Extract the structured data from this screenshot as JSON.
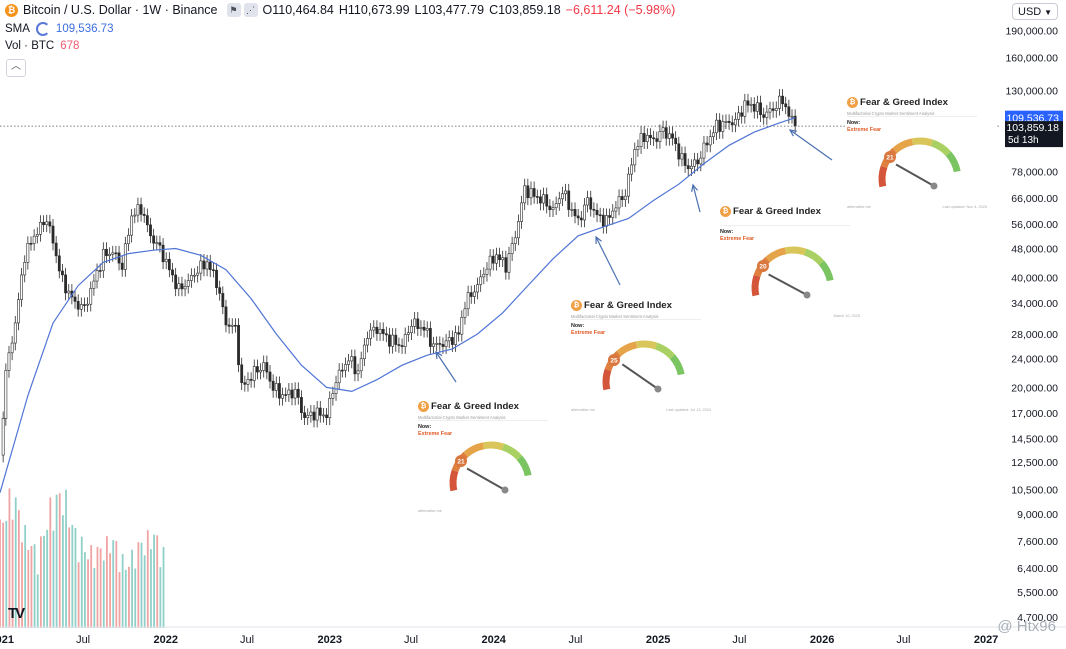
{
  "header": {
    "symbol": "Bitcoin / U.S. Dollar · 1W · Binance",
    "coin_glyph": "₿",
    "open": "O110,464.84",
    "high": "H110,673.99",
    "low": "L103,477.79",
    "close": "C103,859.18",
    "change": "−6,611.24 (−5.98%)",
    "icons": [
      "flag-icon",
      "share-icon"
    ]
  },
  "indicators": {
    "sma_label": "SMA",
    "sma_value": "109,536.73",
    "vol_label": "Vol · BTC",
    "vol_value": "678"
  },
  "currency": "USD",
  "price_scale": {
    "ticks": [
      "190,000.00",
      "160,000.00",
      "130,000.00",
      "78,000.00",
      "66,000.00",
      "56,000.00",
      "48,000.00",
      "40,000.00",
      "34,000.00",
      "28,000.00",
      "24,000.00",
      "20,000.00",
      "17,000.00",
      "14,500.00",
      "12,500.00",
      "10,500.00",
      "9,000.00",
      "7,600.00",
      "6,400.00",
      "5,500.00",
      "4,700.00"
    ],
    "sma_tag": "109,536.73",
    "price_tag": "103,859.18",
    "countdown": "5d 13h"
  },
  "time_axis": [
    "2021",
    "Jul",
    "2022",
    "Jul",
    "2023",
    "Jul",
    "2024",
    "Jul",
    "2025",
    "Jul",
    "2026",
    "Jul",
    "2027"
  ],
  "cards": [
    {
      "title": "Fear & Greed Index",
      "subtitle": "Multifactorial Crypto Market Sentiment Analysis",
      "now": "Now:",
      "status": "Extreme Fear",
      "value": "21",
      "foot": "alternative.me",
      "foot2": ""
    },
    {
      "title": "Fear & Greed Index",
      "subtitle": "Multifactorial Crypto Market Sentiment Analysis",
      "now": "Now:",
      "status": "Extreme Fear",
      "value": "25",
      "foot": "alternative.me",
      "foot2": "Last updated: Jul 13, 2024"
    },
    {
      "title": "Fear & Greed Index",
      "subtitle": "",
      "now": "Now:",
      "status": "Extreme Fear",
      "value": "20",
      "foot": "",
      "foot2": "March 10, 2025"
    },
    {
      "title": "Fear & Greed Index",
      "subtitle": "Multifactorial Crypto Market Sentiment Analysis",
      "now": "Now:",
      "status": "Extreme Fear",
      "value": "21",
      "foot": "alternative.me",
      "foot2": "Last updated: Nov 4, 2025"
    }
  ],
  "watermark": "@ Htx96",
  "tv_logo": "TV",
  "colors": {
    "sma": "#4f74d6",
    "candle": "#2b2b2b",
    "vol_up": "#8fd0c8",
    "vol_down": "#f0a3a3",
    "arrow": "#4a6fb0",
    "tag_blue": "#2962ff"
  },
  "chart_data": {
    "type": "candlestick",
    "title": "Bitcoin / U.S. Dollar",
    "interval": "1W",
    "exchange": "Binance",
    "y_scale": "log",
    "ylim": [
      4500,
      230000
    ],
    "x_range": [
      "2020-12-28",
      "2027-02-01"
    ],
    "close_series": [
      [
        "2020-12-28",
        13000
      ],
      [
        "2021-01-10",
        22000
      ],
      [
        "2021-01-31",
        30000
      ],
      [
        "2021-02-21",
        46000
      ],
      [
        "2021-03-14",
        52000
      ],
      [
        "2021-04-11",
        58000
      ],
      [
        "2021-04-25",
        50000
      ],
      [
        "2021-05-16",
        39000
      ],
      [
        "2021-06-13",
        34000
      ],
      [
        "2021-07-04",
        33000
      ],
      [
        "2021-07-25",
        39000
      ],
      [
        "2021-08-15",
        46000
      ],
      [
        "2021-09-05",
        47000
      ],
      [
        "2021-09-26",
        43000
      ],
      [
        "2021-10-17",
        59000
      ],
      [
        "2021-11-07",
        62000
      ],
      [
        "2021-11-28",
        52000
      ],
      [
        "2021-12-19",
        48000
      ],
      [
        "2022-01-09",
        42000
      ],
      [
        "2022-01-30",
        37000
      ],
      [
        "2022-02-20",
        39000
      ],
      [
        "2022-03-13",
        42000
      ],
      [
        "2022-04-03",
        44000
      ],
      [
        "2022-04-24",
        39000
      ],
      [
        "2022-05-15",
        30000
      ],
      [
        "2022-06-05",
        29000
      ],
      [
        "2022-06-19",
        20000
      ],
      [
        "2022-07-17",
        22000
      ],
      [
        "2022-08-07",
        23000
      ],
      [
        "2022-08-28",
        20000
      ],
      [
        "2022-09-18",
        19000
      ],
      [
        "2022-10-16",
        19500
      ],
      [
        "2022-11-06",
        16500
      ],
      [
        "2022-11-27",
        17000
      ],
      [
        "2022-12-25",
        16800
      ],
      [
        "2023-01-15",
        21000
      ],
      [
        "2023-02-12",
        24000
      ],
      [
        "2023-03-05",
        22000
      ],
      [
        "2023-03-26",
        28000
      ],
      [
        "2023-04-16",
        29000
      ],
      [
        "2023-05-14",
        27000
      ],
      [
        "2023-06-11",
        26000
      ],
      [
        "2023-07-02",
        30000
      ],
      [
        "2023-07-30",
        29000
      ],
      [
        "2023-08-20",
        26000
      ],
      [
        "2023-09-17",
        26500
      ],
      [
        "2023-10-15",
        28000
      ],
      [
        "2023-10-29",
        34000
      ],
      [
        "2023-11-26",
        38000
      ],
      [
        "2023-12-17",
        43000
      ],
      [
        "2024-01-07",
        46000
      ],
      [
        "2024-01-28",
        43000
      ],
      [
        "2024-02-18",
        52000
      ],
      [
        "2024-03-10",
        70000
      ],
      [
        "2024-03-31",
        67000
      ],
      [
        "2024-04-21",
        65000
      ],
      [
        "2024-05-12",
        61000
      ],
      [
        "2024-06-02",
        69000
      ],
      [
        "2024-06-23",
        61000
      ],
      [
        "2024-07-07",
        57000
      ],
      [
        "2024-07-28",
        65000
      ],
      [
        "2024-08-18",
        59000
      ],
      [
        "2024-09-08",
        57000
      ],
      [
        "2024-09-29",
        63000
      ],
      [
        "2024-10-20",
        68000
      ],
      [
        "2024-11-10",
        90000
      ],
      [
        "2024-12-01",
        98000
      ],
      [
        "2024-12-22",
        95000
      ],
      [
        "2025-01-12",
        101000
      ],
      [
        "2025-02-02",
        96000
      ],
      [
        "2025-02-23",
        84000
      ],
      [
        "2025-03-09",
        80000
      ],
      [
        "2025-03-30",
        83000
      ],
      [
        "2025-04-20",
        94000
      ],
      [
        "2025-05-11",
        104000
      ],
      [
        "2025-06-01",
        106000
      ],
      [
        "2025-06-22",
        107000
      ],
      [
        "2025-07-13",
        119000
      ],
      [
        "2025-08-03",
        118000
      ],
      [
        "2025-08-24",
        111000
      ],
      [
        "2025-09-14",
        116000
      ],
      [
        "2025-10-05",
        123000
      ],
      [
        "2025-10-19",
        111000
      ],
      [
        "2025-11-02",
        103859
      ]
    ],
    "sma_series": [
      [
        "2020-12-28",
        10300
      ],
      [
        "2021-02-28",
        19000
      ],
      [
        "2021-04-25",
        30000
      ],
      [
        "2021-06-20",
        38000
      ],
      [
        "2021-08-15",
        44000
      ],
      [
        "2021-10-10",
        46500
      ],
      [
        "2021-12-05",
        47500
      ],
      [
        "2022-01-23",
        48000
      ],
      [
        "2022-03-20",
        46000
      ],
      [
        "2022-05-15",
        42000
      ],
      [
        "2022-07-10",
        35000
      ],
      [
        "2022-09-04",
        28000
      ],
      [
        "2022-10-30",
        23000
      ],
      [
        "2022-12-25",
        20000
      ],
      [
        "2023-02-19",
        19500
      ],
      [
        "2023-04-16",
        21000
      ],
      [
        "2023-06-11",
        23000
      ],
      [
        "2023-08-06",
        24500
      ],
      [
        "2023-10-01",
        25500
      ],
      [
        "2023-11-26",
        28000
      ],
      [
        "2024-01-21",
        32000
      ],
      [
        "2024-03-17",
        38000
      ],
      [
        "2024-05-12",
        45000
      ],
      [
        "2024-07-07",
        52000
      ],
      [
        "2024-09-01",
        55000
      ],
      [
        "2024-10-27",
        58000
      ],
      [
        "2024-12-22",
        65000
      ],
      [
        "2025-02-16",
        72000
      ],
      [
        "2025-04-13",
        82000
      ],
      [
        "2025-06-08",
        92000
      ],
      [
        "2025-08-03",
        100000
      ],
      [
        "2025-09-28",
        106000
      ],
      [
        "2025-11-02",
        109536.73
      ]
    ],
    "volume_series": [
      [
        "2020-12-28",
        118
      ],
      [
        "2021-01-25",
        160
      ],
      [
        "2021-02-22",
        110
      ],
      [
        "2021-03-22",
        86
      ],
      [
        "2021-04-19",
        140
      ],
      [
        "2021-05-17",
        160
      ],
      [
        "2021-06-14",
        110
      ],
      [
        "2021-07-12",
        88
      ],
      [
        "2021-08-09",
        92
      ],
      [
        "2021-09-06",
        104
      ],
      [
        "2021-10-04",
        72
      ],
      [
        "2021-11-01",
        96
      ],
      [
        "2021-12-06",
        110
      ],
      [
        "2022-01-03",
        80
      ]
    ],
    "annotations": [
      {
        "date": "2023-09-17",
        "label": "Fear & Greed 21"
      },
      {
        "date": "2024-08-05",
        "label": "Fear & Greed 25"
      },
      {
        "date": "2025-03-09",
        "label": "Fear & Greed 20"
      },
      {
        "date": "2025-11-02",
        "label": "Fear & Greed 21"
      }
    ],
    "horizontal_line": 103859.18
  }
}
